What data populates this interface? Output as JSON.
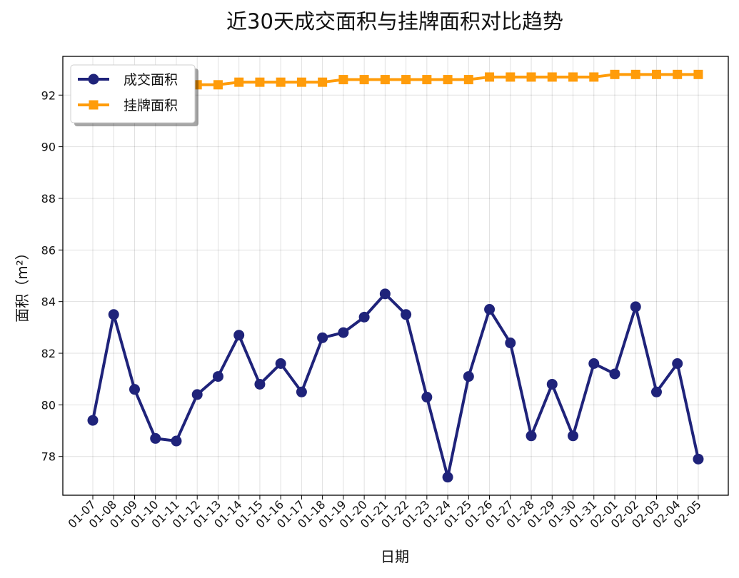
{
  "chart_data": {
    "type": "line",
    "title": "近30天成交面积与挂牌面积对比趋势",
    "xlabel": "日期",
    "ylabel": "面积（m²）",
    "ylim": [
      76.5,
      93.5
    ],
    "yticks": [
      78,
      80,
      82,
      84,
      86,
      88,
      90,
      92
    ],
    "grid": true,
    "legend_position": "top-left",
    "categories": [
      "01-07",
      "01-08",
      "01-09",
      "01-10",
      "01-11",
      "01-12",
      "01-13",
      "01-14",
      "01-15",
      "01-16",
      "01-17",
      "01-18",
      "01-19",
      "01-20",
      "01-21",
      "01-22",
      "01-23",
      "01-24",
      "01-25",
      "01-26",
      "01-27",
      "01-28",
      "01-29",
      "01-30",
      "01-31",
      "02-01",
      "02-02",
      "02-03",
      "02-04",
      "02-05"
    ],
    "series": [
      {
        "name": "成交面积",
        "color": "#1f237a",
        "marker": "circle",
        "values": [
          79.4,
          83.5,
          80.6,
          78.7,
          78.6,
          80.4,
          81.1,
          82.7,
          80.8,
          81.6,
          80.5,
          82.6,
          82.8,
          83.4,
          84.3,
          83.5,
          80.3,
          77.2,
          81.1,
          83.7,
          82.4,
          78.8,
          80.8,
          78.8,
          81.6,
          81.2,
          83.8,
          80.5,
          81.6,
          77.9
        ]
      },
      {
        "name": "挂牌面积",
        "color": "#ff9c0a",
        "marker": "square",
        "values": [
          null,
          null,
          null,
          null,
          null,
          92.4,
          92.4,
          92.5,
          92.5,
          92.5,
          92.5,
          92.5,
          92.6,
          92.6,
          92.6,
          92.6,
          92.6,
          92.6,
          92.6,
          92.7,
          92.7,
          92.7,
          92.7,
          92.7,
          92.7,
          92.8,
          92.8,
          92.8,
          92.8,
          92.8
        ]
      }
    ]
  }
}
